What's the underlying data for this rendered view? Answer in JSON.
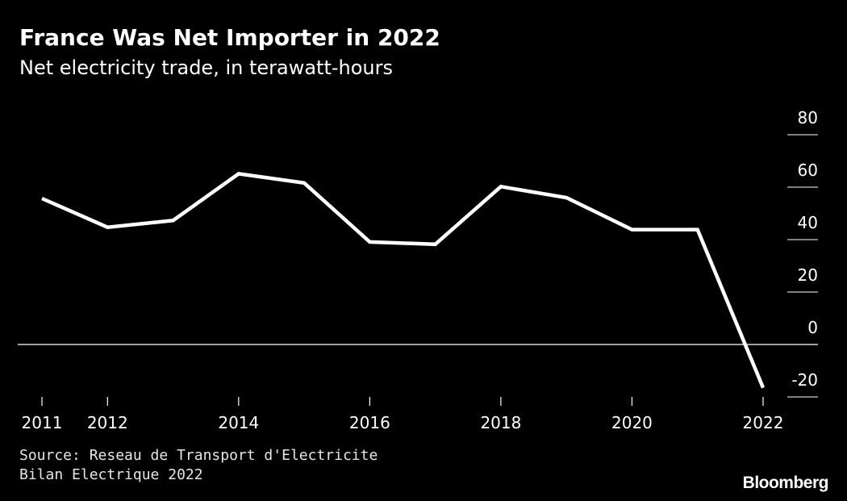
{
  "header": {
    "title": "France Was Net Importer in 2022",
    "subtitle": "Net electricity trade, in terawatt-hours"
  },
  "footer": {
    "source_line1": "Source: Reseau de Transport d'Electricite",
    "source_line2": "Bilan Electrique 2022",
    "logo": "Bloomberg"
  },
  "colors": {
    "background": "#000000",
    "line": "#ffffff",
    "text": "#ffffff"
  },
  "chart_data": {
    "type": "line",
    "title": "France Was Net Importer in 2022",
    "subtitle": "Net electricity trade, in terawatt-hours",
    "xlabel": "",
    "ylabel": "",
    "x": [
      2011,
      2012,
      2013,
      2014,
      2015,
      2016,
      2017,
      2018,
      2019,
      2020,
      2021,
      2022
    ],
    "series": [
      {
        "values": [
          55.7,
          44.7,
          47.3,
          65.1,
          61.6,
          39.1,
          38.2,
          60.2,
          56.0,
          43.8,
          43.8,
          -16.5
        ]
      }
    ],
    "xlim": [
      2011,
      2022
    ],
    "ylim": [
      -20,
      80
    ],
    "x_ticks": [
      {
        "value": 2011,
        "label": "2011"
      },
      {
        "value": 2012,
        "label": "2012"
      },
      {
        "value": 2014,
        "label": "2014"
      },
      {
        "value": 2016,
        "label": "2016"
      },
      {
        "value": 2018,
        "label": "2018"
      },
      {
        "value": 2020,
        "label": "2020"
      },
      {
        "value": 2022,
        "label": "2022"
      }
    ],
    "y_ticks": [
      {
        "value": 80,
        "label": "80"
      },
      {
        "value": 60,
        "label": "60"
      },
      {
        "value": 40,
        "label": "40"
      },
      {
        "value": 20,
        "label": "20"
      },
      {
        "value": 0,
        "label": "0"
      },
      {
        "value": -20,
        "label": "-20"
      }
    ],
    "y_axis_side": "right",
    "zero_line": true,
    "grid": false,
    "legend": "none"
  }
}
